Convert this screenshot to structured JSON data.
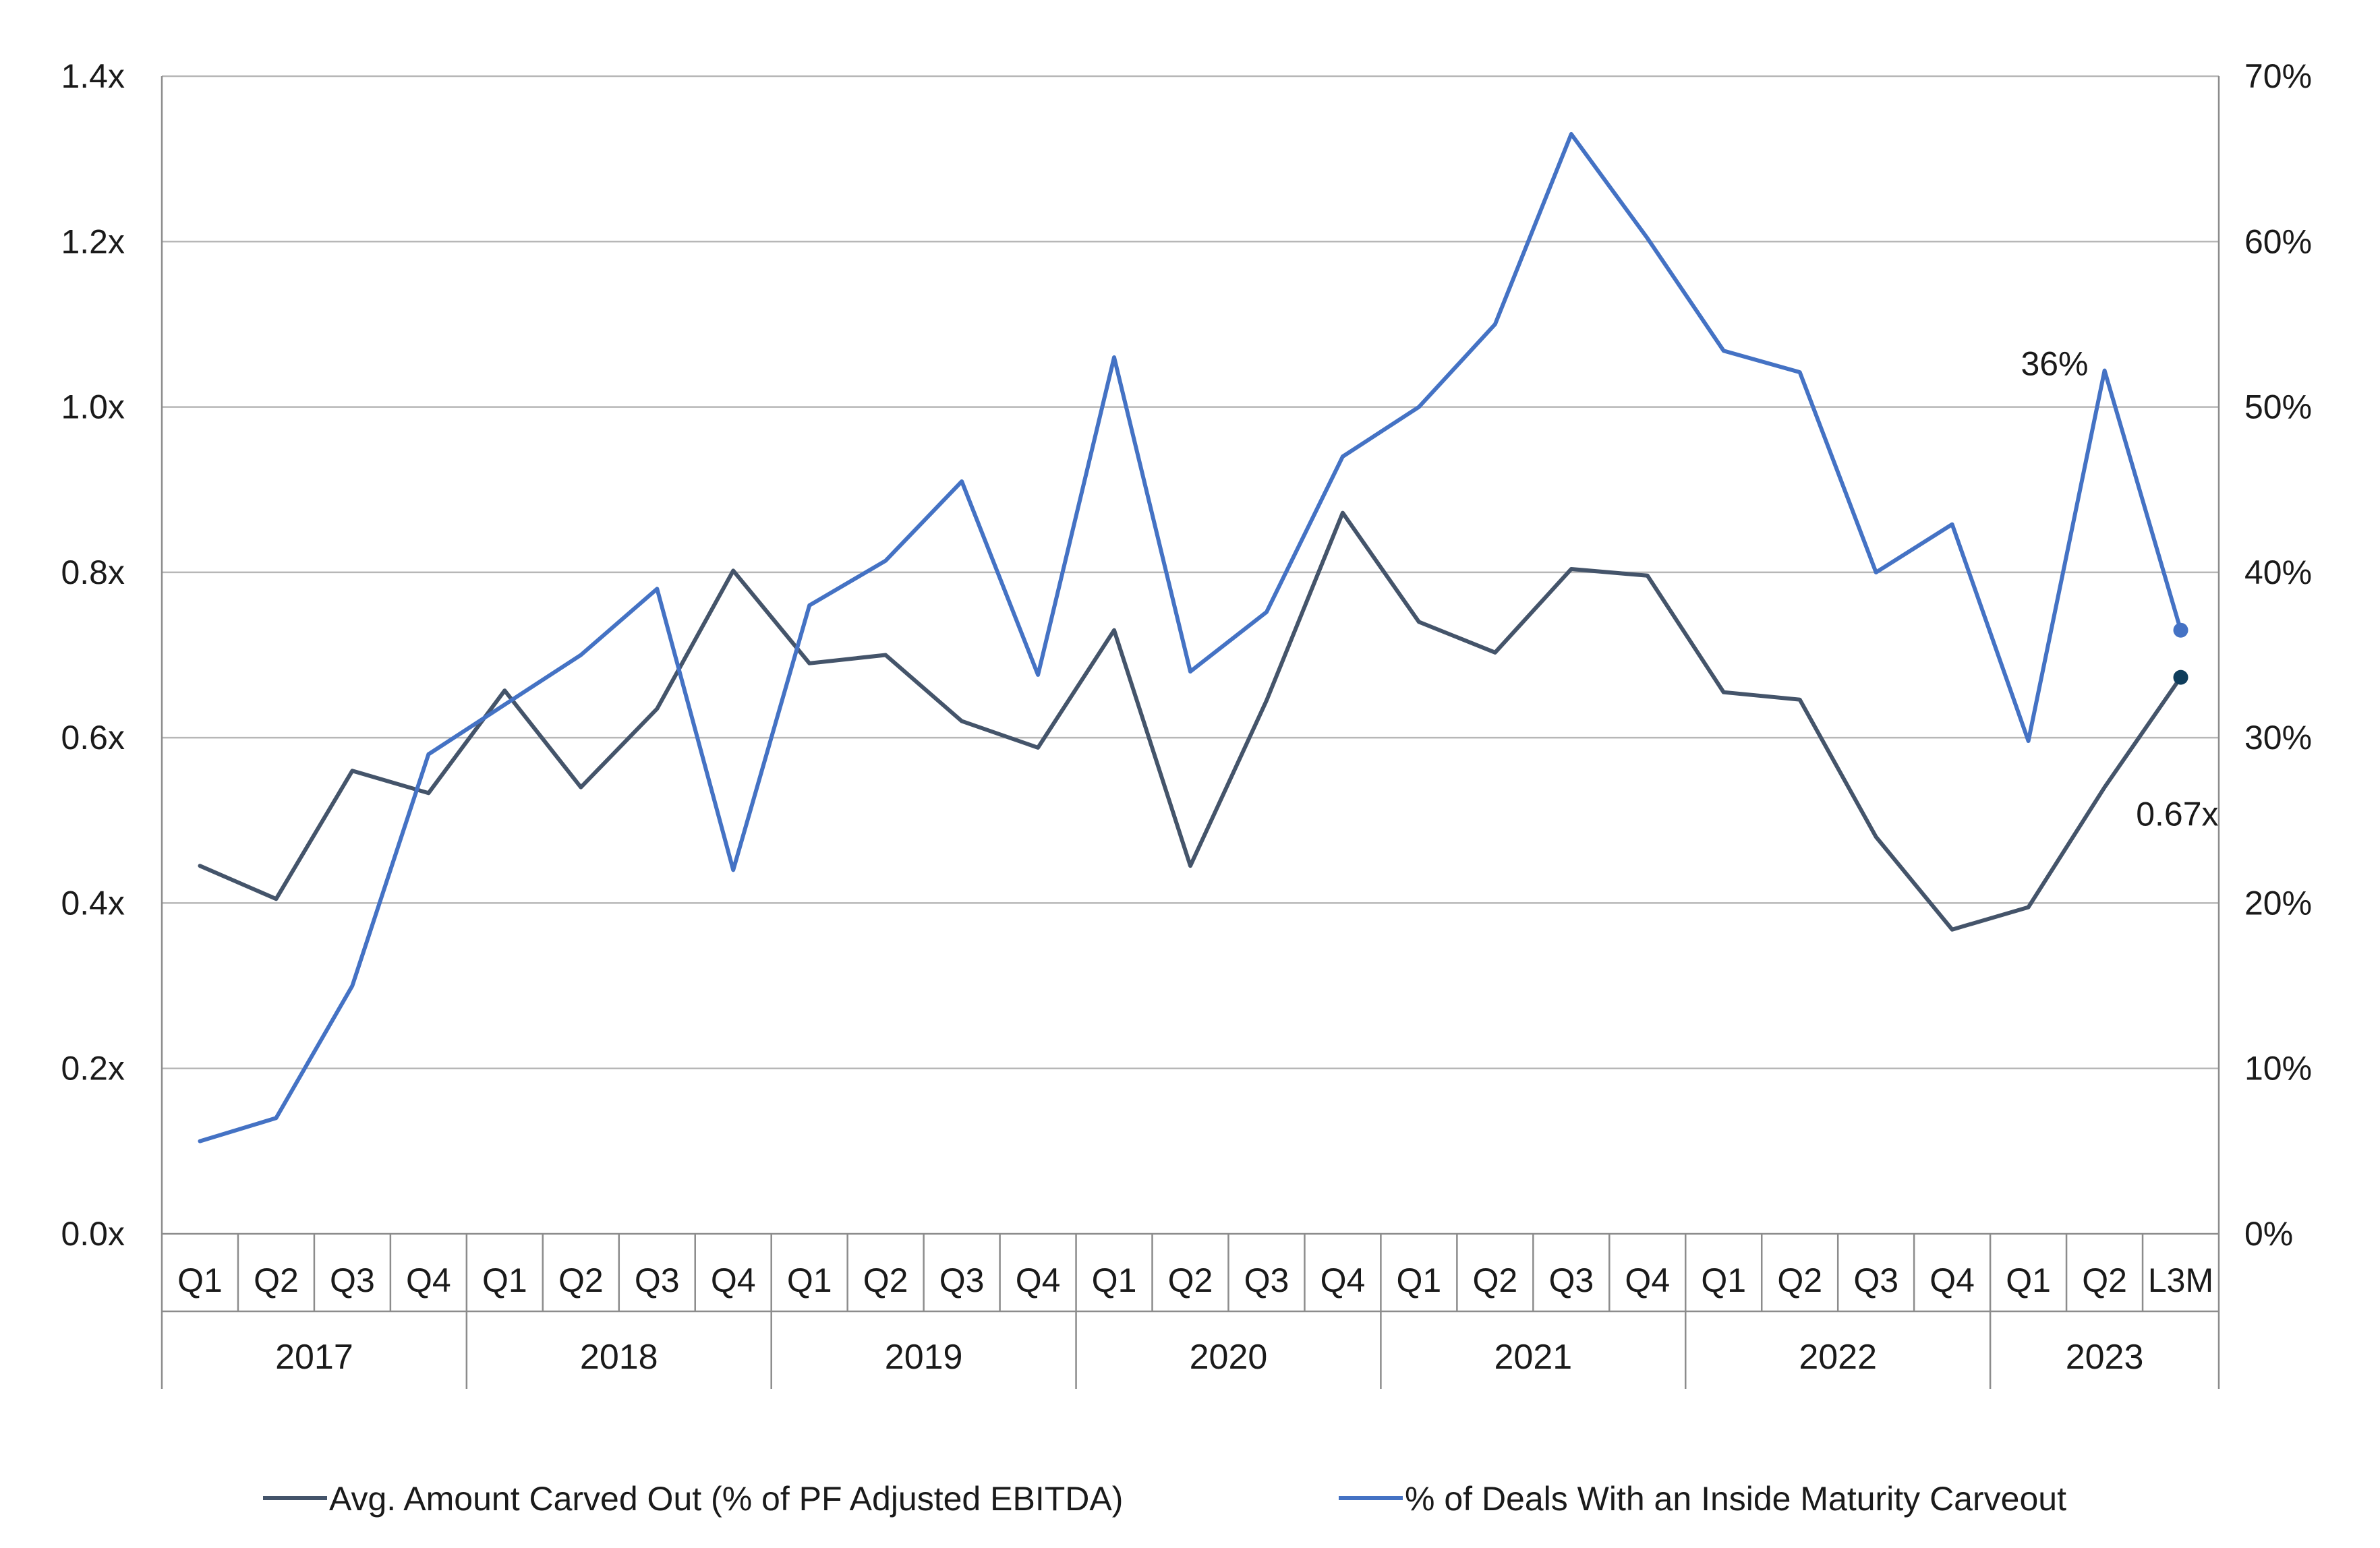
{
  "chart_data": {
    "type": "line",
    "title": "",
    "xlabel": "",
    "ylabel_left": "",
    "ylabel_right": "",
    "ylim_left": [
      0,
      1.4
    ],
    "ylim_right": [
      0,
      70
    ],
    "yticks_left": [
      "0.0x",
      "0.2x",
      "0.4x",
      "0.6x",
      "0.8x",
      "1.0x",
      "1.2x",
      "1.4x"
    ],
    "yticks_right": [
      "0%",
      "10%",
      "20%",
      "30%",
      "40%",
      "50%",
      "60%",
      "70%"
    ],
    "grid": true,
    "legend_position": "bottom",
    "categories": [
      "Q1",
      "Q2",
      "Q3",
      "Q4",
      "Q1",
      "Q2",
      "Q3",
      "Q4",
      "Q1",
      "Q2",
      "Q3",
      "Q4",
      "Q1",
      "Q2",
      "Q3",
      "Q4",
      "Q1",
      "Q2",
      "Q3",
      "Q4",
      "Q1",
      "Q2",
      "Q3",
      "Q4",
      "Q1",
      "Q2",
      "L3M"
    ],
    "year_groups": [
      {
        "label": "2017",
        "span": 4
      },
      {
        "label": "2018",
        "span": 4
      },
      {
        "label": "2019",
        "span": 4
      },
      {
        "label": "2020",
        "span": 4
      },
      {
        "label": "2021",
        "span": 4
      },
      {
        "label": "2022",
        "span": 4
      },
      {
        "label": "2023",
        "span": 3
      }
    ],
    "series": [
      {
        "name": "Avg. Amount Carved Out (% of PF Adjusted EBITDA)",
        "axis": "left",
        "color": "#44546a",
        "values": [
          0.445,
          0.405,
          0.56,
          0.533,
          0.657,
          0.54,
          0.635,
          0.802,
          0.69,
          0.7,
          0.62,
          0.588,
          0.73,
          0.445,
          0.645,
          0.872,
          0.74,
          0.703,
          0.804,
          0.796,
          0.655,
          0.646,
          0.48,
          0.368,
          0.395,
          0.54,
          0.673
        ]
      },
      {
        "name": "% of Deals With an Inside Maturity Carveout",
        "axis": "right",
        "color": "#4472c4",
        "values": [
          5.6,
          7.0,
          15.0,
          29.0,
          32.0,
          35.0,
          39.0,
          22.0,
          38.0,
          40.7,
          45.5,
          33.8,
          53.0,
          34.0,
          37.6,
          47.0,
          50.0,
          55.0,
          66.5,
          60.2,
          53.4,
          52.1,
          40.0,
          42.9,
          29.8,
          52.2,
          36.5
        ]
      }
    ],
    "annotations": [
      {
        "text": "36%",
        "series": 1,
        "index": 26
      },
      {
        "text": "0.67x",
        "series": 0,
        "index": 26
      }
    ]
  }
}
